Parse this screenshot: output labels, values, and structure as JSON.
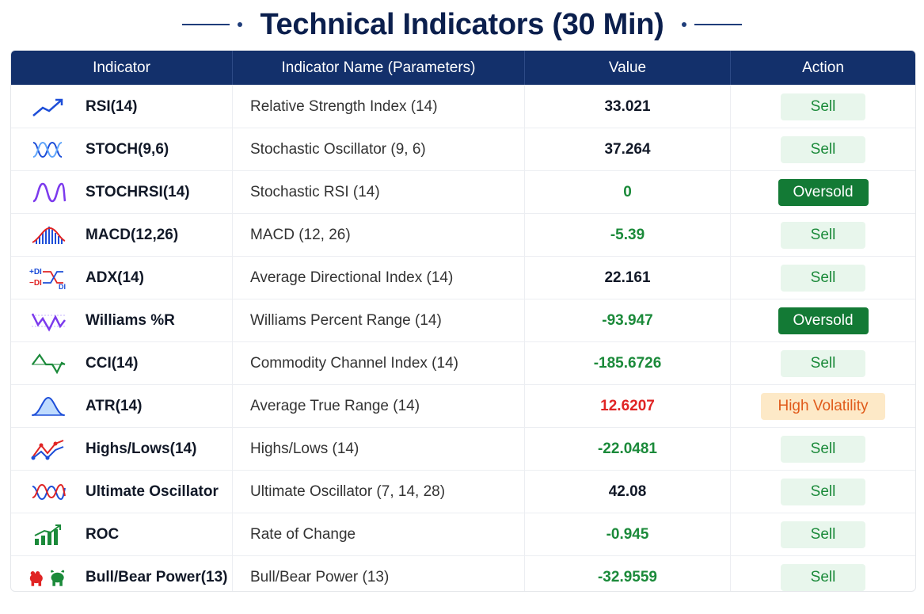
{
  "title": "Technical Indicators (30 Min)",
  "headers": {
    "indicator": "Indicator",
    "name": "Indicator Name (Parameters)",
    "value": "Value",
    "action": "Action"
  },
  "rows": [
    {
      "indicator": "RSI(14)",
      "name": "Relative Strength Index (14)",
      "value": "33.021",
      "action": "Sell",
      "icon": "trend-up-icon"
    },
    {
      "indicator": "STOCH(9,6)",
      "name": "Stochastic Oscillator (9, 6)",
      "value": "37.264",
      "action": "Sell",
      "icon": "stoch-wave-icon"
    },
    {
      "indicator": "STOCHRSI(14)",
      "name": "Stochastic RSI (14)",
      "value": "0",
      "action": "Oversold",
      "icon": "stochrsi-wave-icon"
    },
    {
      "indicator": "MACD(12,26)",
      "name": "MACD (12, 26)",
      "value": "-5.39",
      "action": "Sell",
      "icon": "macd-histogram-icon"
    },
    {
      "indicator": "ADX(14)",
      "name": "Average Directional Index (14)",
      "value": "22.161",
      "action": "Sell",
      "icon": "adx-di-icon"
    },
    {
      "indicator": "Williams %R",
      "name": "Williams Percent Range (14)",
      "value": "-93.947",
      "action": "Oversold",
      "icon": "williams-wave-icon"
    },
    {
      "indicator": "CCI(14)",
      "name": "Commodity Channel Index (14)",
      "value": "-185.6726",
      "action": "Sell",
      "icon": "cci-wave-icon"
    },
    {
      "indicator": "ATR(14)",
      "name": "Average True Range (14)",
      "value": "12.6207",
      "action": "High Volatility",
      "icon": "atr-bell-icon"
    },
    {
      "indicator": "Highs/Lows(14)",
      "name": "Highs/Lows (14)",
      "value": "-22.0481",
      "action": "Sell",
      "icon": "highs-lows-icon"
    },
    {
      "indicator": "Ultimate Oscillator",
      "name": "Ultimate Oscillator (7, 14, 28)",
      "value": "42.08",
      "action": "Sell",
      "icon": "ultimate-oscillator-icon"
    },
    {
      "indicator": "ROC",
      "name": "Rate of Change",
      "value": "-0.945",
      "action": "Sell",
      "icon": "roc-bars-icon"
    },
    {
      "indicator": "Bull/Bear Power(13)",
      "name": "Bull/Bear Power (13)",
      "value": "-32.9559",
      "action": "Sell",
      "icon": "bull-bear-icon"
    }
  ],
  "colors": {
    "header_bg": "#13306b",
    "title": "#0b1f4d",
    "positive_green": "#1b8a3a",
    "negative_red": "#e02424",
    "oversold_bg": "#137a35",
    "high_volatility_bg": "#fde9c7"
  }
}
